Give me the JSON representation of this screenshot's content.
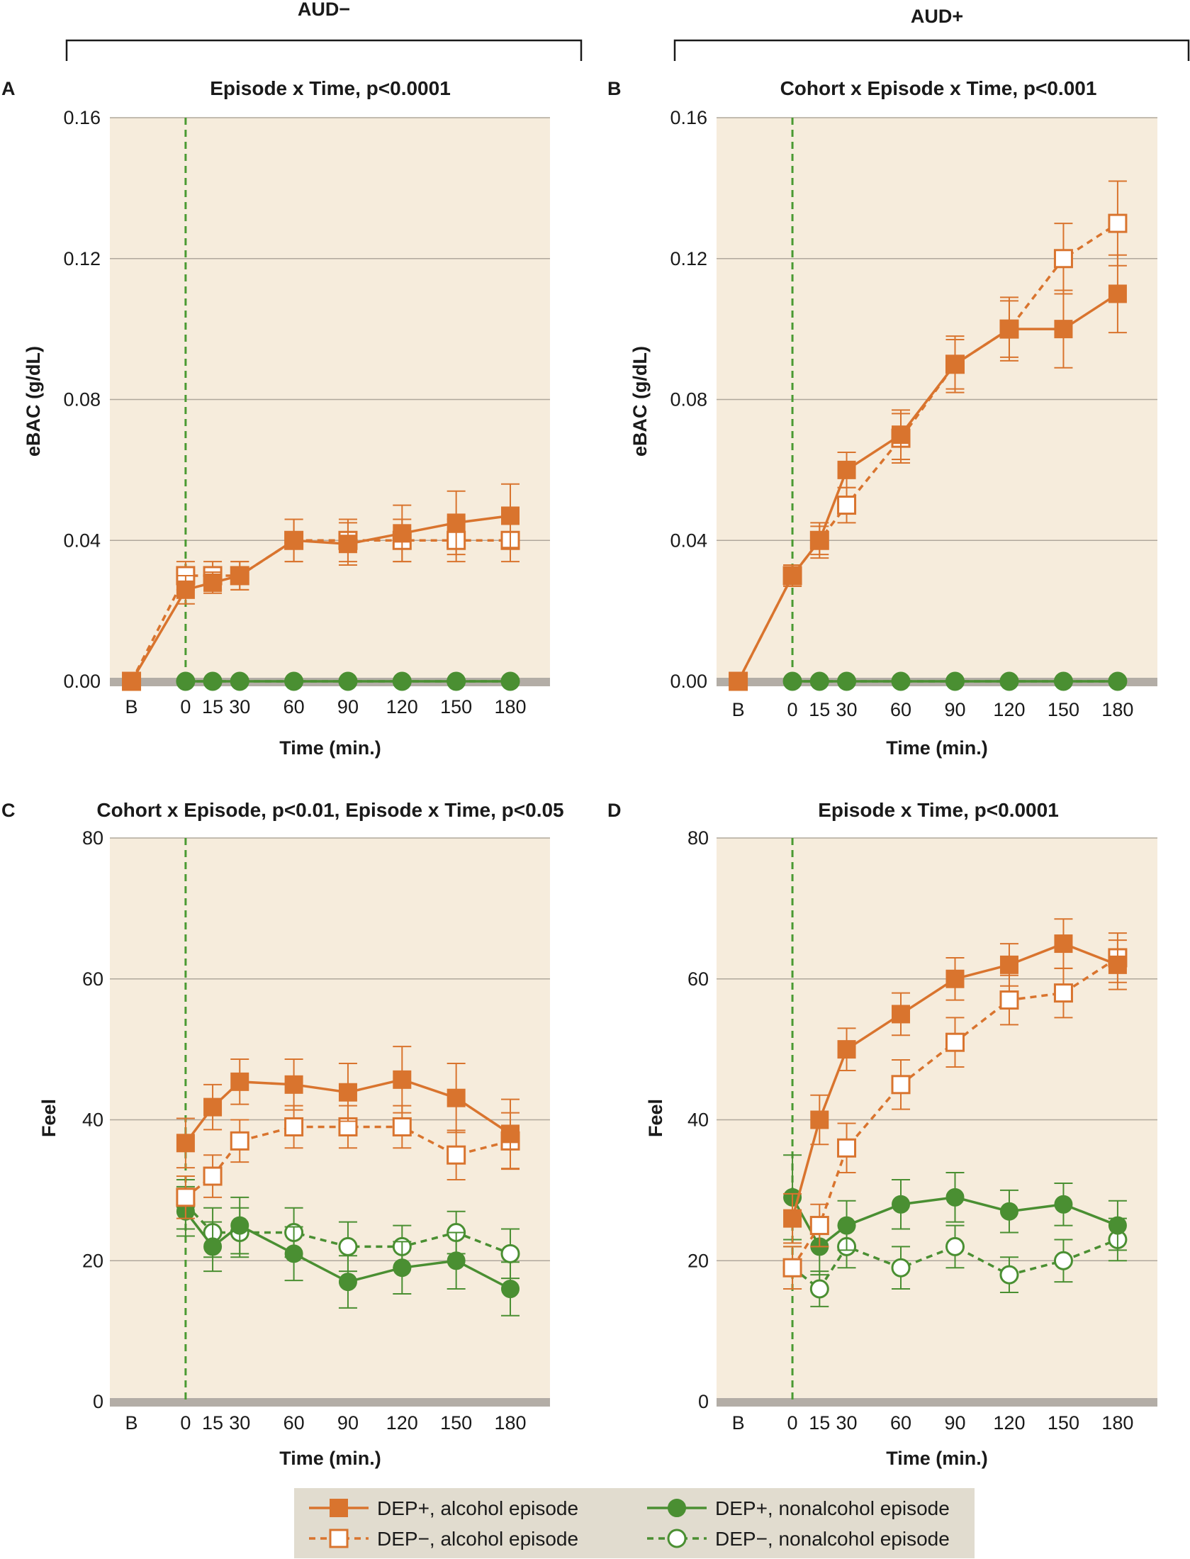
{
  "colors": {
    "alcohol": "#d9742e",
    "nonalcohol": "#4a8f32",
    "plot_bg": "#f6ecdc",
    "grid": "#b0a89c",
    "baseline_band": "#b3ada6",
    "vline": "#4a9a32",
    "legend_bg": "#e1dccf"
  },
  "cohorts": [
    {
      "label": "AUD−"
    },
    {
      "label": "AUD+"
    }
  ],
  "legend": [
    {
      "label": "DEP+, alcohol episode",
      "color_key": "alcohol",
      "marker": "square",
      "filled": true,
      "dashed": false
    },
    {
      "label": "DEP−, alcohol episode",
      "color_key": "alcohol",
      "marker": "square",
      "filled": false,
      "dashed": true
    },
    {
      "label": "DEP+, nonalcohol episode",
      "color_key": "nonalcohol",
      "marker": "circle",
      "filled": true,
      "dashed": false
    },
    {
      "label": "DEP−, nonalcohol episode",
      "color_key": "nonalcohol",
      "marker": "circle",
      "filled": false,
      "dashed": true
    }
  ],
  "chart_data": [
    {
      "panel": "A",
      "type": "line",
      "title": "Episode x Time, p<0.0001",
      "xlabel": "Time (min.)",
      "ylabel": "eBAC (g/dL)",
      "ylim": [
        0,
        0.16
      ],
      "yticks": [
        0,
        0.04,
        0.08,
        0.12,
        0.16
      ],
      "ytick_labels": [
        "0.00",
        "0.04",
        "0.08",
        "0.12",
        "0.16"
      ],
      "x": [
        -30,
        0,
        15,
        30,
        60,
        90,
        120,
        150,
        180
      ],
      "xtick_labels": [
        "B",
        "0",
        "15",
        "30",
        "60",
        "90",
        "120",
        "150",
        "180"
      ],
      "series": [
        {
          "name": "DEP+, alcohol episode",
          "values": [
            0,
            0.026,
            0.028,
            0.03,
            0.04,
            0.039,
            0.042,
            0.045,
            0.047
          ],
          "errors": [
            0,
            0.004,
            0.003,
            0.004,
            0.006,
            0.006,
            0.008,
            0.009,
            0.009
          ]
        },
        {
          "name": "DEP−, alcohol episode",
          "values": [
            0,
            0.03,
            0.03,
            0.03,
            0.04,
            0.04,
            0.04,
            0.04,
            0.04
          ],
          "errors": [
            0,
            0.004,
            0.004,
            0.004,
            0.006,
            0.006,
            0.006,
            0.006,
            0.006
          ]
        },
        {
          "name": "DEP+, nonalcohol episode",
          "values": [
            null,
            0,
            0,
            0,
            0,
            0,
            0,
            0,
            0
          ],
          "errors": [
            0,
            0,
            0,
            0,
            0,
            0,
            0,
            0,
            0
          ]
        },
        {
          "name": "DEP−, nonalcohol episode",
          "values": [
            null,
            0,
            0,
            0,
            0,
            0,
            0,
            0,
            0
          ],
          "errors": [
            0,
            0,
            0,
            0,
            0,
            0,
            0,
            0,
            0
          ]
        }
      ]
    },
    {
      "panel": "B",
      "type": "line",
      "title": "Cohort x Episode x Time, p<0.001",
      "xlabel": "Time (min.)",
      "ylabel": "eBAC (g/dL)",
      "ylim": [
        0,
        0.16
      ],
      "yticks": [
        0,
        0.04,
        0.08,
        0.12,
        0.16
      ],
      "ytick_labels": [
        "0.00",
        "0.04",
        "0.08",
        "0.12",
        "0.16"
      ],
      "x": [
        -30,
        0,
        15,
        30,
        60,
        90,
        120,
        150,
        180
      ],
      "xtick_labels": [
        "B",
        "0",
        "15",
        "30",
        "60",
        "90",
        "120",
        "150",
        "180"
      ],
      "series": [
        {
          "name": "DEP+, alcohol episode",
          "values": [
            0,
            0.03,
            0.04,
            0.06,
            0.07,
            0.09,
            0.1,
            0.1,
            0.11
          ],
          "errors": [
            0,
            0.003,
            0.005,
            0.005,
            0.007,
            0.008,
            0.009,
            0.011,
            0.011
          ]
        },
        {
          "name": "DEP−, alcohol episode",
          "values": [
            0,
            0.03,
            0.04,
            0.05,
            0.069,
            0.09,
            0.1,
            0.12,
            0.13
          ],
          "errors": [
            0,
            0.003,
            0.004,
            0.005,
            0.007,
            0.007,
            0.008,
            0.01,
            0.012
          ]
        },
        {
          "name": "DEP+, nonalcohol episode",
          "values": [
            null,
            0,
            0,
            0,
            0,
            0,
            0,
            0,
            0
          ],
          "errors": [
            0,
            0,
            0,
            0,
            0,
            0,
            0,
            0,
            0
          ]
        },
        {
          "name": "DEP−, nonalcohol episode",
          "values": [
            null,
            0,
            0,
            0,
            0,
            0,
            0,
            0,
            0
          ],
          "errors": [
            0,
            0,
            0,
            0,
            0,
            0,
            0,
            0,
            0
          ]
        }
      ]
    },
    {
      "panel": "C",
      "type": "line",
      "title": "Cohort x Episode, p<0.01, Episode x Time, p<0.05",
      "xlabel": "Time (min.)",
      "ylabel": "Feel",
      "ylim": [
        0,
        80
      ],
      "yticks": [
        0,
        20,
        40,
        60,
        80
      ],
      "ytick_labels": [
        "0",
        "20",
        "40",
        "60",
        "80"
      ],
      "x": [
        -30,
        0,
        15,
        30,
        60,
        90,
        120,
        150,
        180
      ],
      "xtick_labels": [
        "B",
        "0",
        "15",
        "30",
        "60",
        "90",
        "120",
        "150",
        "180"
      ],
      "series": [
        {
          "name": "DEP+, alcohol episode",
          "values": [
            null,
            36.7,
            41.8,
            45.4,
            45.0,
            43.9,
            45.7,
            43.1,
            38.0
          ],
          "errors": [
            0,
            3.5,
            3.2,
            3.2,
            3.6,
            4.1,
            4.7,
            4.9,
            4.9
          ]
        },
        {
          "name": "DEP−, alcohol episode",
          "values": [
            null,
            29.0,
            32.0,
            37.0,
            39.0,
            39.0,
            39.0,
            35.0,
            37.0
          ],
          "errors": [
            0,
            3.0,
            3.0,
            3.0,
            3.0,
            3.0,
            3.0,
            3.5,
            4.0
          ]
        },
        {
          "name": "DEP+, nonalcohol episode",
          "values": [
            null,
            27.0,
            22.0,
            25.0,
            21.0,
            17.0,
            19.0,
            20.0,
            16.0
          ],
          "errors": [
            0,
            3.5,
            3.5,
            4.0,
            3.8,
            3.7,
            3.7,
            4.0,
            3.8
          ]
        },
        {
          "name": "DEP−, nonalcohol episode",
          "values": [
            null,
            28.0,
            24.0,
            24.0,
            24.0,
            22.0,
            22.0,
            24.0,
            21.0
          ],
          "errors": [
            0,
            3.5,
            3.5,
            3.5,
            3.5,
            3.5,
            3.0,
            3.0,
            3.5
          ]
        }
      ]
    },
    {
      "panel": "D",
      "type": "line",
      "title": "Episode x Time, p<0.0001",
      "xlabel": "Time (min.)",
      "ylabel": "Feel",
      "ylim": [
        0,
        80
      ],
      "yticks": [
        0,
        20,
        40,
        60,
        80
      ],
      "ytick_labels": [
        "0",
        "20",
        "40",
        "60",
        "80"
      ],
      "x": [
        -30,
        0,
        15,
        30,
        60,
        90,
        120,
        150,
        180
      ],
      "xtick_labels": [
        "B",
        "0",
        "15",
        "30",
        "60",
        "90",
        "120",
        "150",
        "180"
      ],
      "series": [
        {
          "name": "DEP+, alcohol episode",
          "values": [
            null,
            26.0,
            40.0,
            50.0,
            55.0,
            60.0,
            62.0,
            65.0,
            62.0
          ],
          "errors": [
            0,
            3.5,
            3.5,
            3.0,
            3.0,
            3.0,
            3.0,
            3.5,
            3.5
          ]
        },
        {
          "name": "DEP−, alcohol episode",
          "values": [
            null,
            19.0,
            25.0,
            36.0,
            45.0,
            51.0,
            57.0,
            58.0,
            63.0
          ],
          "errors": [
            0,
            3.0,
            3.0,
            3.5,
            3.5,
            3.5,
            3.5,
            3.5,
            3.5
          ]
        },
        {
          "name": "DEP+, nonalcohol episode",
          "values": [
            null,
            29.0,
            22.0,
            25.0,
            28.0,
            29.0,
            27.0,
            28.0,
            25.0
          ],
          "errors": [
            0,
            6.0,
            4.0,
            3.5,
            3.5,
            3.5,
            3.0,
            3.0,
            3.5
          ]
        },
        {
          "name": "DEP−, nonalcohol episode",
          "values": [
            null,
            19.0,
            16.0,
            22.0,
            19.0,
            22.0,
            18.0,
            20.0,
            23.0
          ],
          "errors": [
            0,
            3.0,
            2.5,
            3.0,
            3.0,
            3.0,
            2.5,
            3.0,
            3.0
          ]
        }
      ]
    }
  ]
}
